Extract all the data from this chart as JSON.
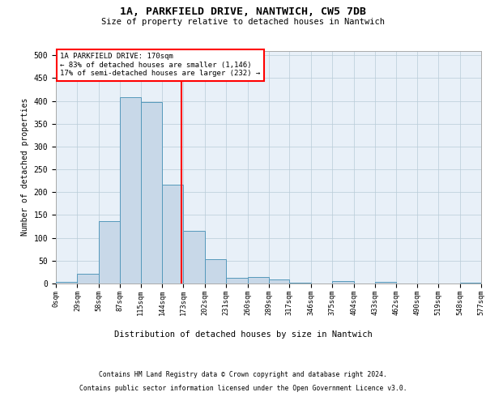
{
  "title": "1A, PARKFIELD DRIVE, NANTWICH, CW5 7DB",
  "subtitle": "Size of property relative to detached houses in Nantwich",
  "xlabel": "Distribution of detached houses by size in Nantwich",
  "ylabel": "Number of detached properties",
  "bar_color": "#c8d8e8",
  "bar_edge_color": "#5599bb",
  "grid_color": "#b8ccd8",
  "background_color": "#e8f0f8",
  "property_line_x": 170,
  "property_line_color": "red",
  "annotation_text": "1A PARKFIELD DRIVE: 170sqm\n← 83% of detached houses are smaller (1,146)\n17% of semi-detached houses are larger (232) →",
  "annotation_box_color": "red",
  "bin_edges": [
    0,
    29,
    58,
    87,
    115,
    144,
    173,
    202,
    231,
    260,
    289,
    317,
    346,
    375,
    404,
    433,
    462,
    490,
    519,
    548,
    577
  ],
  "bin_heights": [
    3,
    22,
    137,
    408,
    398,
    216,
    115,
    53,
    12,
    15,
    8,
    2,
    0,
    5,
    0,
    3,
    0,
    0,
    0,
    2
  ],
  "tick_labels": [
    "0sqm",
    "29sqm",
    "58sqm",
    "87sqm",
    "115sqm",
    "144sqm",
    "173sqm",
    "202sqm",
    "231sqm",
    "260sqm",
    "289sqm",
    "317sqm",
    "346sqm",
    "375sqm",
    "404sqm",
    "433sqm",
    "462sqm",
    "490sqm",
    "519sqm",
    "548sqm",
    "577sqm"
  ],
  "ylim": [
    0,
    510
  ],
  "yticks": [
    0,
    50,
    100,
    150,
    200,
    250,
    300,
    350,
    400,
    450,
    500
  ],
  "footnote1": "Contains HM Land Registry data © Crown copyright and database right 2024.",
  "footnote2": "Contains public sector information licensed under the Open Government Licence v3.0."
}
